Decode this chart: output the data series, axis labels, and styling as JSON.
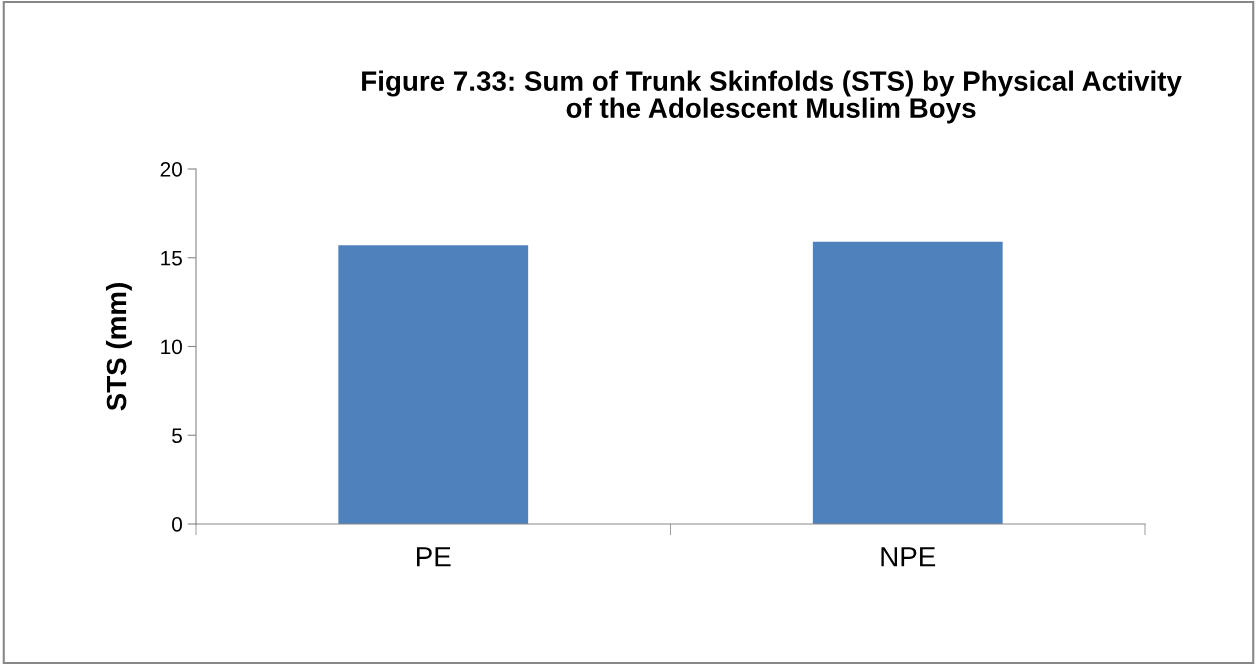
{
  "chart_data": {
    "type": "bar",
    "title": "Figure 7.33: Sum of Trunk Skinfolds (STS) by Physical Activity\nof the Adolescent Muslim Boys",
    "ylabel": "STS (mm)",
    "categories": [
      "PE",
      "NPE"
    ],
    "values": [
      15.7,
      15.9
    ],
    "color": "#4f81bd",
    "ylim": [
      0,
      20
    ],
    "yticks": [
      0,
      5,
      10,
      15,
      20
    ],
    "grid": false,
    "legend": false
  }
}
